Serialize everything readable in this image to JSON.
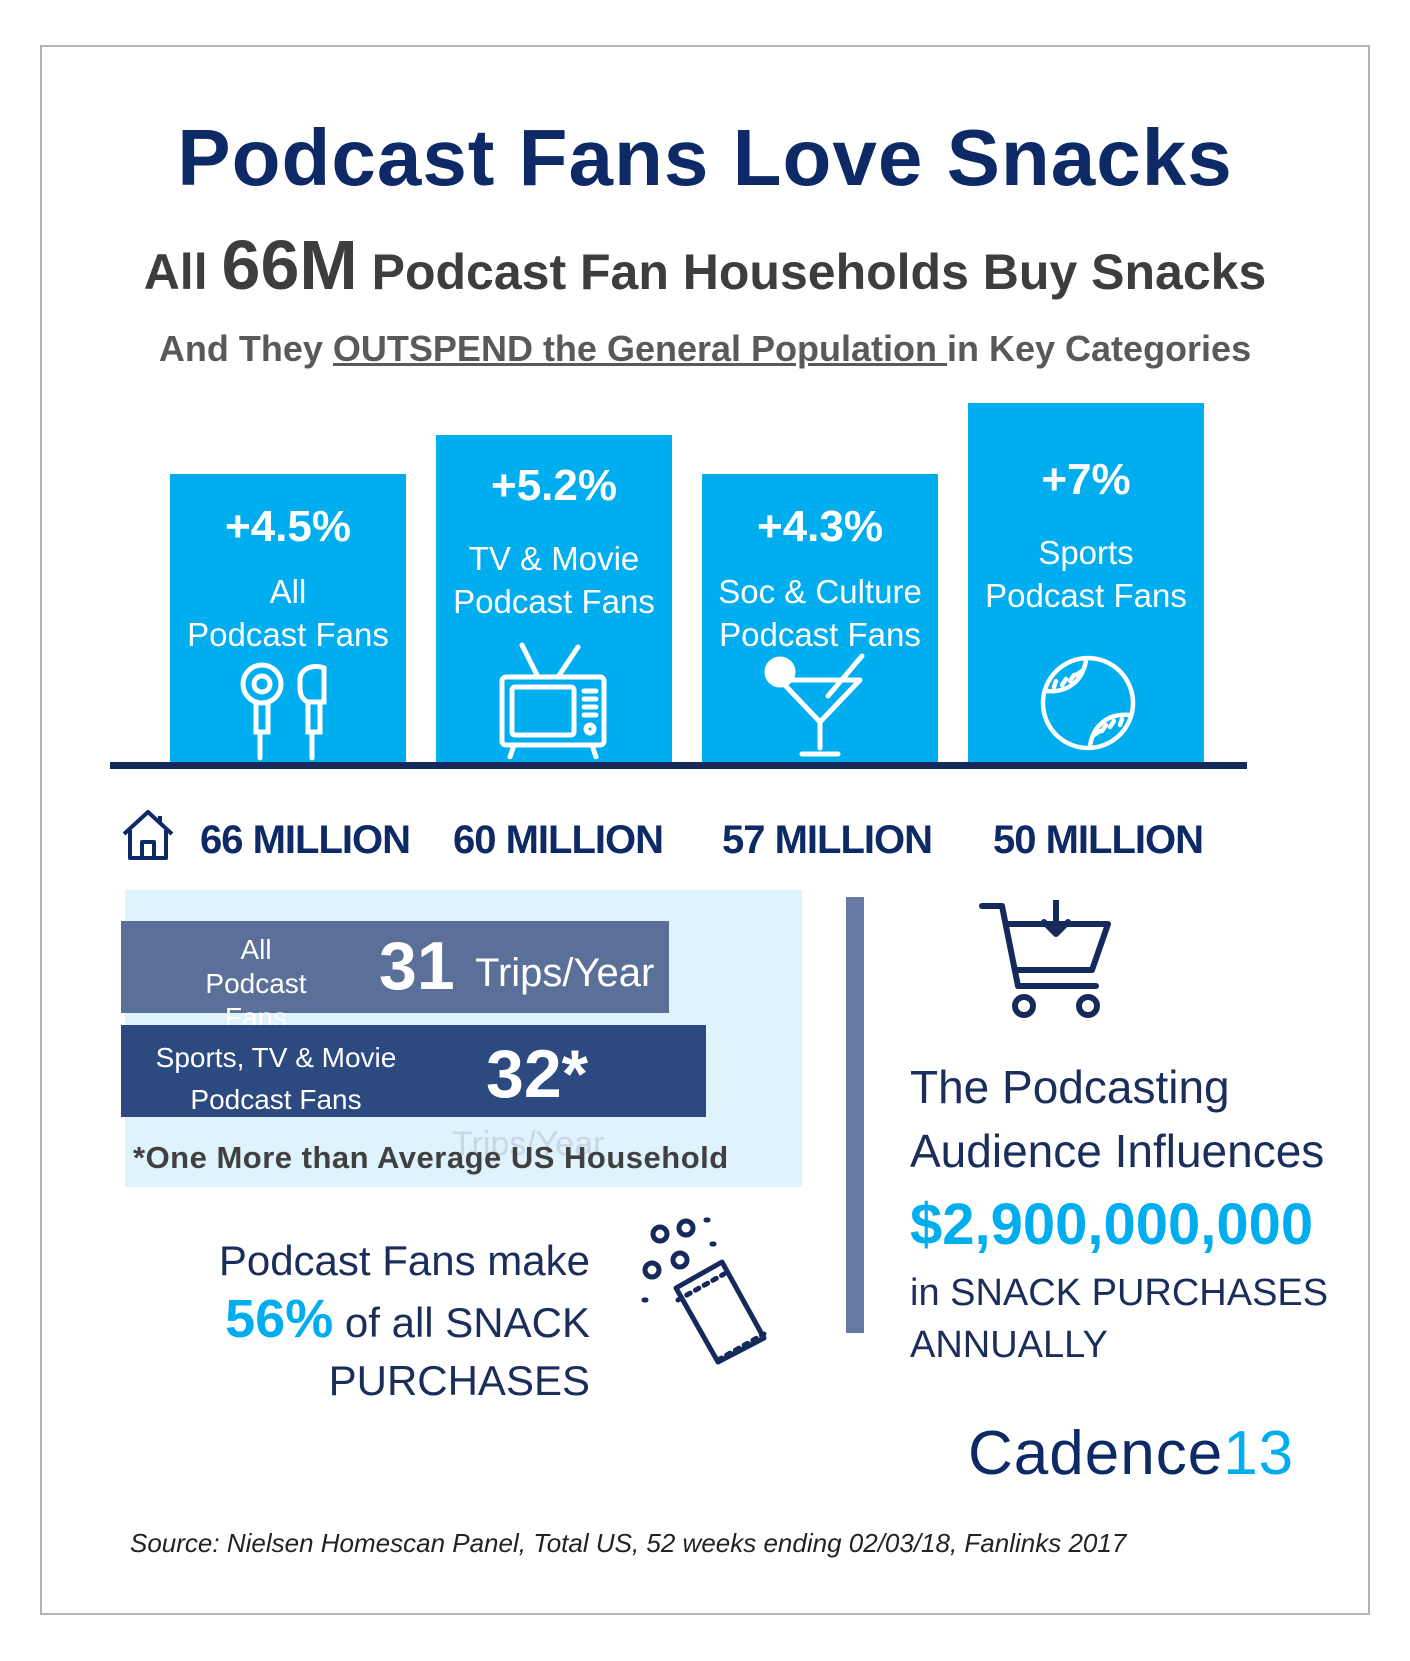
{
  "title": "Podcast Fans Love Snacks",
  "subtitle": {
    "pre": "All",
    "number": "66M",
    "post": "Podcast Fan Households Buy Snacks"
  },
  "tagline": {
    "pre": "And They",
    "underlined": "OUTSPEND the General Population ",
    "post": "in Key Categories"
  },
  "bars": [
    {
      "pct": "+4.5%",
      "label1": "All",
      "label2": "Podcast Fans",
      "icon": "earbuds-icon",
      "households": "66 MILLION"
    },
    {
      "pct": "+5.2%",
      "label1": "TV & Movie",
      "label2": "Podcast Fans",
      "icon": "tv-icon",
      "households": "60 MILLION"
    },
    {
      "pct": "+4.3%",
      "label1": "Soc & Culture",
      "label2": "Podcast Fans",
      "icon": "cocktail-icon",
      "households": "57 MILLION"
    },
    {
      "pct": "+7%",
      "label1": "Sports",
      "label2": "Podcast Fans",
      "icon": "baseball-icon",
      "households": "50 MILLION"
    }
  ],
  "trips": {
    "row1": {
      "label1": "All Podcast",
      "label2": "Fans",
      "number": "31",
      "unit": "Trips/Year"
    },
    "row2": {
      "label1": "Sports, TV & Movie",
      "label2": "Podcast Fans",
      "number": "32*",
      "unit": "Trips/Year"
    },
    "footnote": "*One More than Average US Household"
  },
  "snack_share": {
    "line1": "Podcast Fans make",
    "pct": "56%",
    "line2": "of all SNACK",
    "line3": "PURCHASES"
  },
  "influence": {
    "line1": "The Podcasting",
    "line2": "Audience Influences",
    "amount": "$2,900,000,000",
    "line3": "in SNACK PURCHASES",
    "line4": "ANNUALLY"
  },
  "logo": {
    "word": "Cadence",
    "number": "13"
  },
  "source": "Source: Nielsen Homescan Panel, Total US, 52 weeks ending 02/03/18, Fanlinks 2017",
  "colors": {
    "navy": "#0d2a66",
    "accent": "#00adee",
    "bar_row1": "#5a7099",
    "bar_row2": "#2c4a80"
  }
}
